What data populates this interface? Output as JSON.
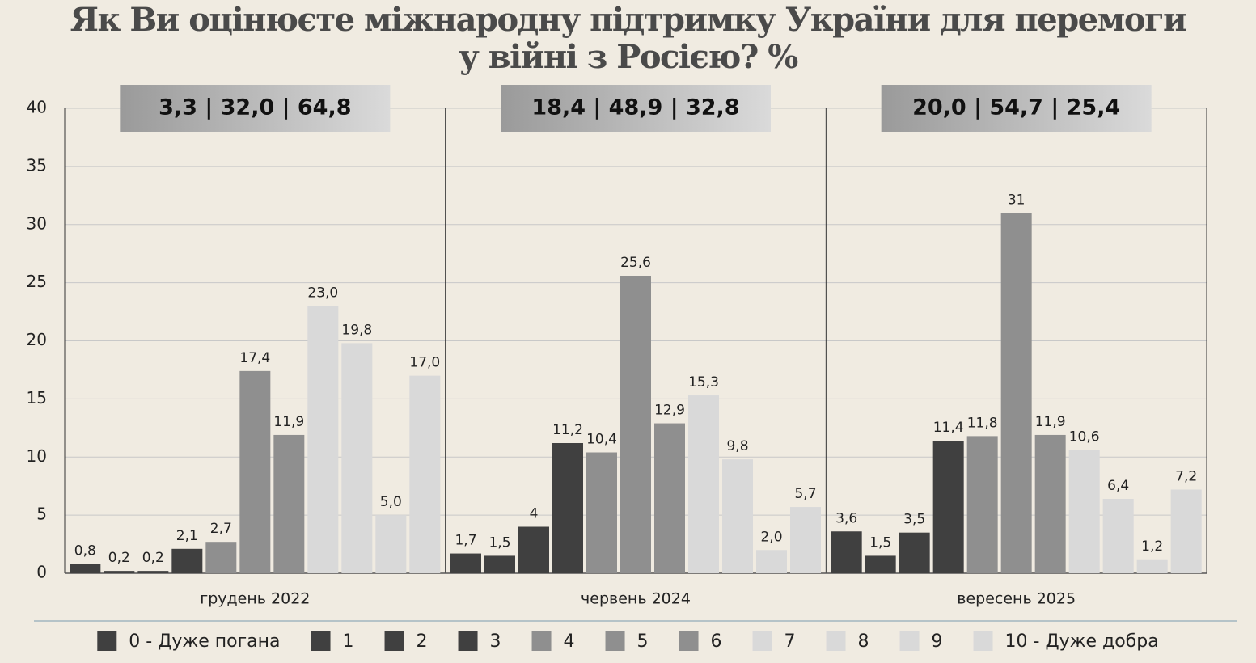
{
  "chart_data": {
    "type": "bar",
    "title": "Як Ви оцінюєте міжнародну підтримку України для перемоги у війні з Росією? %",
    "categories": [
      "грудень 2022",
      "червень 2024",
      "вересень 2025"
    ],
    "annotations": [
      "3,3 | 32,0 | 64,8",
      "18,4 | 48,9 | 32,8",
      "20,0 | 54,7 | 25,4"
    ],
    "ylim": [
      0,
      40
    ],
    "yticks": [
      0,
      5,
      10,
      15,
      20,
      25,
      30,
      35,
      40
    ],
    "grid": true,
    "series": [
      {
        "name": "0 - Дуже погана",
        "color": "#404040",
        "values": [
          0.8,
          1.7,
          3.6
        ],
        "value_labels": [
          "0,8",
          "1,7",
          "3,6"
        ]
      },
      {
        "name": "1",
        "color": "#404040",
        "values": [
          0.2,
          1.5,
          1.5
        ],
        "value_labels": [
          "0,2",
          "1,5",
          "1,5"
        ]
      },
      {
        "name": "2",
        "color": "#404040",
        "values": [
          0.2,
          4,
          3.5
        ],
        "value_labels": [
          "0,2",
          "4",
          "3,5"
        ]
      },
      {
        "name": "3",
        "color": "#404040",
        "values": [
          2.1,
          11.2,
          11.4
        ],
        "value_labels": [
          "2,1",
          "11,2",
          "11,4"
        ]
      },
      {
        "name": "4",
        "color": "#8f8f8f",
        "values": [
          2.7,
          10.4,
          11.8
        ],
        "value_labels": [
          "2,7",
          "10,4",
          "11,8"
        ]
      },
      {
        "name": "5",
        "color": "#8f8f8f",
        "values": [
          17.4,
          25.6,
          31
        ],
        "value_labels": [
          "17,4",
          "25,6",
          "31"
        ]
      },
      {
        "name": "6",
        "color": "#8f8f8f",
        "values": [
          11.9,
          12.9,
          11.9
        ],
        "value_labels": [
          "11,9",
          "12,9",
          "11,9"
        ]
      },
      {
        "name": "7",
        "color": "#d9d9d9",
        "values": [
          23.0,
          15.3,
          10.6
        ],
        "value_labels": [
          "23,0",
          "15,3",
          "10,6"
        ]
      },
      {
        "name": "8",
        "color": "#d9d9d9",
        "values": [
          19.8,
          9.8,
          6.4
        ],
        "value_labels": [
          "19,8",
          "9,8",
          "6,4"
        ]
      },
      {
        "name": "9",
        "color": "#d9d9d9",
        "values": [
          5.0,
          2.0,
          1.2
        ],
        "value_labels": [
          "5,0",
          "2,0",
          "1,2"
        ]
      },
      {
        "name": "10 - Дуже добра",
        "color": "#d9d9d9",
        "values": [
          17.0,
          5.7,
          7.2
        ],
        "value_labels": [
          "17,0",
          "5,7",
          "7,2"
        ]
      }
    ]
  }
}
